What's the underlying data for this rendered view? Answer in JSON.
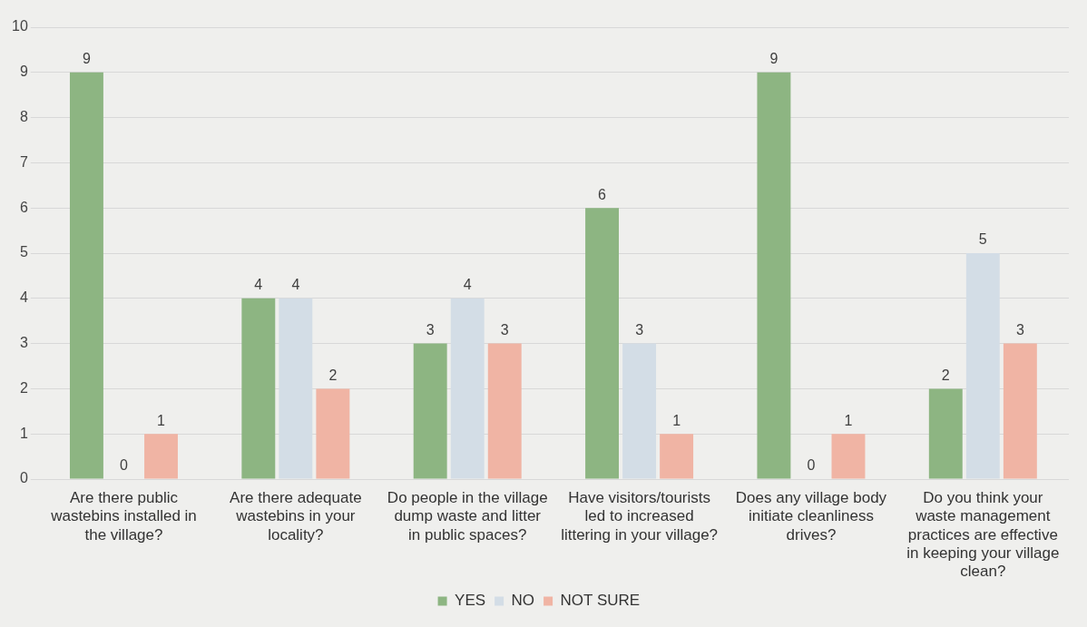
{
  "chart_data": {
    "type": "bar",
    "categories": [
      "Are there public wastebins installed in the village?",
      "Are there adequate wastebins in your locality?",
      "Do people in the village dump waste and litter in public spaces?",
      "Have visitors/tourists led to increased littering in your village?",
      "Does any village body initiate cleanliness drives?",
      "Do you think your waste management practices are effective in keeping your village clean?"
    ],
    "series": [
      {
        "name": "YES",
        "color": "#8db582",
        "values": [
          9,
          4,
          3,
          6,
          9,
          2
        ]
      },
      {
        "name": "NO",
        "color": "#d3dde6",
        "values": [
          0,
          4,
          4,
          3,
          0,
          5
        ]
      },
      {
        "name": "NOT SURE",
        "color": "#f0b4a4",
        "values": [
          1,
          2,
          3,
          1,
          1,
          3
        ]
      }
    ],
    "ylim": [
      0,
      10
    ],
    "yticks": [
      0,
      1,
      2,
      3,
      4,
      5,
      6,
      7,
      8,
      9,
      10
    ],
    "grid": "y",
    "legend": "bottom",
    "data_labels": true
  }
}
